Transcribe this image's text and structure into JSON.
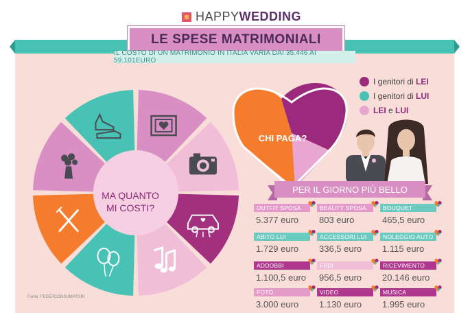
{
  "logo": {
    "part1": "HAPPY",
    "part2": "WEDDING"
  },
  "title": "LE SPESE MATRIMONIALI",
  "subtitle": "IL COSTO DI UN MATRIMONIO IN ITALIA VARIA DAI 35.446 AI 59.101EURO",
  "wheel": {
    "center_line1": "MA QUANTO",
    "center_line2": "MI COSTI?",
    "segments": [
      {
        "icon": "film-heart-icon",
        "color": "#d98fc3"
      },
      {
        "icon": "camera-icon",
        "color": "#f0bfd7"
      },
      {
        "icon": "wedding-car-icon",
        "color": "#a2307f"
      },
      {
        "icon": "music-notes-icon",
        "color": "#f0bfd7"
      },
      {
        "icon": "balloons-icon",
        "color": "#47c2b5"
      },
      {
        "icon": "cutlery-icon",
        "color": "#f47c2c"
      },
      {
        "icon": "bouquet-icon",
        "color": "#d98fc3"
      },
      {
        "icon": "shoes-icon",
        "color": "#47c2b5"
      }
    ]
  },
  "heart": {
    "label": "CHI PAGA?"
  },
  "legend": [
    {
      "prefix": "I genitori di ",
      "bold": "LEI",
      "color": "#9b2a7d"
    },
    {
      "prefix": "I genitori di ",
      "bold": "LUI",
      "color": "#47c2b5"
    },
    {
      "prefix": "",
      "bold": "LEI",
      "middle": " e ",
      "bold2": "LUI",
      "color": "#e8a7d0"
    }
  ],
  "banner": "PER IL GIORNO PIÙ BELLO",
  "costs": [
    {
      "label": "OUTFIT SPOSA",
      "value": "5.377 euro",
      "color": "c-pink"
    },
    {
      "label": "BEAUTY SPOSA",
      "value": "803 euro",
      "color": "c-pink"
    },
    {
      "label": "BOUQUET",
      "value": "465,5 euro",
      "color": "c-teal"
    },
    {
      "label": "ABITO LUI",
      "value": "1.729 euro",
      "color": "c-teal"
    },
    {
      "label": "ACCESSORI LUI",
      "value": "336,5 euro",
      "color": "c-teal"
    },
    {
      "label": "NOLEGGIO AUTO",
      "value": "1.115 euro",
      "color": "c-teal"
    },
    {
      "label": "ADDOBBI",
      "value": "1.100,5 euro",
      "color": "c-purple"
    },
    {
      "label": "FEDI",
      "value": "956,5 euro",
      "color": "c-light"
    },
    {
      "label": "RICEVIMENTO",
      "value": "20.146 euro",
      "color": "c-purple"
    },
    {
      "label": "FOTO",
      "value": "3.000 euro",
      "color": "c-pink"
    },
    {
      "label": "VIDEO",
      "value": "1.130 euro",
      "color": "c-purple"
    },
    {
      "label": "MUSICA",
      "value": "1.995 euro",
      "color": "c-purple"
    }
  ],
  "source": "Fonte: FEDERCONSUMATORI"
}
